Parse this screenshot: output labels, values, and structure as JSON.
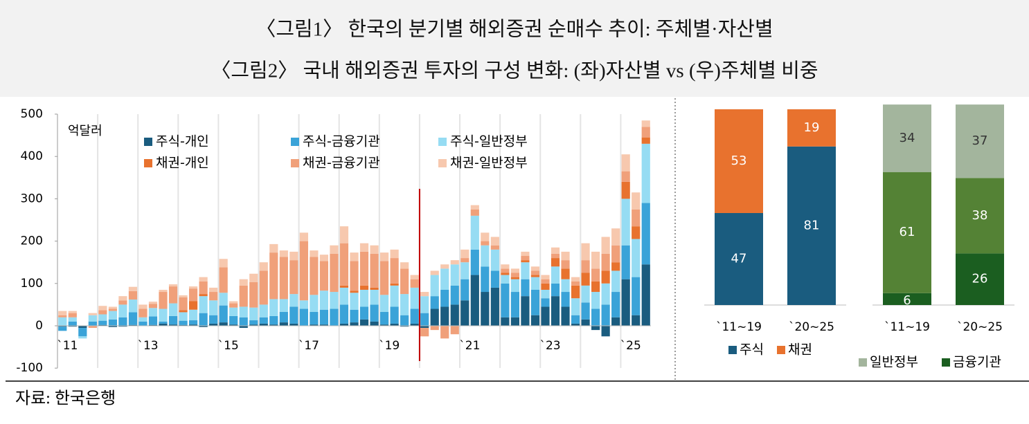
{
  "header": {
    "title1": "〈그림1〉 한국의 분기별 해외증권 순매수 추이: 주체별·자산별",
    "title2": "〈그림2〉 국내 해외증권 투자의 구성 변화: (좌)자산별 vs (우)주체별 비중"
  },
  "source": "자료: 한국은행",
  "chart_data": [
    {
      "type": "bar",
      "stacked": true,
      "unit": "억달러",
      "categories": [
        "`11",
        null,
        null,
        null,
        null,
        null,
        null,
        null,
        "`13",
        null,
        null,
        null,
        null,
        null,
        null,
        null,
        "`15",
        null,
        null,
        null,
        null,
        null,
        null,
        null,
        "`17",
        null,
        null,
        null,
        null,
        null,
        null,
        null,
        "`19",
        null,
        null,
        null,
        null,
        null,
        null,
        null,
        "`21",
        null,
        null,
        null,
        null,
        null,
        null,
        null,
        "`23",
        null,
        null,
        null,
        null,
        null,
        null,
        null,
        "`25",
        null,
        null
      ],
      "ylim": [
        -100,
        500
      ],
      "yticks": [
        -100,
        0,
        100,
        200,
        300,
        400,
        500
      ],
      "series": [
        {
          "name": "주식-개인",
          "color": "#1a5c7f",
          "values": [
            -2,
            -2,
            -5,
            0,
            2,
            -3,
            -2,
            2,
            0,
            2,
            5,
            3,
            2,
            3,
            -3,
            5,
            8,
            3,
            -5,
            3,
            5,
            3,
            8,
            5,
            0,
            3,
            3,
            0,
            5,
            8,
            15,
            10,
            3,
            5,
            -2,
            5,
            -5,
            40,
            45,
            50,
            60,
            120,
            80,
            90,
            20,
            20,
            70,
            25,
            45,
            70,
            45,
            5,
            15,
            -10,
            -25,
            20,
            110,
            25,
            145
          ]
        },
        {
          "name": "주식-금융기관",
          "color": "#3aa3d8",
          "values": [
            -10,
            10,
            -20,
            10,
            10,
            15,
            20,
            30,
            10,
            20,
            5,
            20,
            10,
            10,
            30,
            20,
            40,
            20,
            20,
            10,
            15,
            20,
            25,
            40,
            40,
            30,
            35,
            40,
            45,
            30,
            30,
            40,
            30,
            40,
            25,
            35,
            30,
            30,
            40,
            45,
            50,
            60,
            60,
            40,
            80,
            60,
            40,
            60,
            20,
            30,
            35,
            20,
            40,
            40,
            50,
            60,
            80,
            90,
            145
          ]
        },
        {
          "name": "주식-일반정부",
          "color": "#96dcf3",
          "values": [
            20,
            10,
            -5,
            15,
            15,
            20,
            30,
            30,
            10,
            20,
            30,
            30,
            20,
            25,
            40,
            35,
            30,
            20,
            25,
            30,
            30,
            40,
            30,
            30,
            20,
            40,
            45,
            40,
            40,
            40,
            40,
            35,
            40,
            50,
            50,
            50,
            40,
            50,
            50,
            50,
            40,
            80,
            50,
            50,
            20,
            30,
            40,
            30,
            20,
            40,
            30,
            40,
            40,
            40,
            50,
            50,
            110,
            90,
            140
          ]
        },
        {
          "name": "채권-개인",
          "color": "#e8722e",
          "values": [
            0,
            0,
            0,
            0,
            0,
            0,
            0,
            0,
            0,
            0,
            0,
            0,
            5,
            20,
            5,
            0,
            0,
            0,
            0,
            0,
            0,
            0,
            0,
            0,
            0,
            0,
            0,
            0,
            5,
            5,
            10,
            5,
            0,
            5,
            0,
            0,
            0,
            0,
            0,
            0,
            0,
            0,
            0,
            0,
            5,
            5,
            5,
            5,
            15,
            20,
            25,
            30,
            30,
            25,
            30,
            20,
            40,
            30,
            15
          ]
        },
        {
          "name": "채권-금융기관",
          "color": "#f0a07a",
          "values": [
            5,
            10,
            0,
            -5,
            10,
            5,
            10,
            20,
            20,
            10,
            40,
            40,
            30,
            30,
            30,
            20,
            60,
            10,
            50,
            60,
            80,
            110,
            100,
            80,
            140,
            90,
            70,
            90,
            100,
            70,
            80,
            80,
            80,
            60,
            60,
            20,
            -20,
            -10,
            -30,
            -20,
            10,
            15,
            10,
            10,
            10,
            10,
            10,
            10,
            10,
            10,
            20,
            10,
            30,
            30,
            40,
            40,
            25,
            40,
            25
          ]
        },
        {
          "name": "채권-일반정부",
          "color": "#f7c8ae",
          "values": [
            10,
            5,
            0,
            5,
            10,
            5,
            10,
            10,
            10,
            5,
            5,
            5,
            5,
            5,
            10,
            10,
            20,
            5,
            15,
            20,
            20,
            20,
            15,
            20,
            20,
            15,
            15,
            20,
            40,
            20,
            20,
            20,
            20,
            20,
            15,
            10,
            10,
            10,
            10,
            10,
            20,
            10,
            20,
            20,
            10,
            10,
            10,
            10,
            10,
            15,
            20,
            10,
            40,
            40,
            40,
            40,
            40,
            40,
            15
          ]
        }
      ]
    },
    {
      "type": "bar",
      "stacked": true,
      "categories": [
        "`11~19",
        "`20~25"
      ],
      "ylim": [
        0,
        100
      ],
      "series": [
        {
          "name": "주식",
          "color": "#1a5c7f",
          "label_color": "#ffffff",
          "values": [
            47,
            81
          ]
        },
        {
          "name": "채권",
          "color": "#e8722e",
          "label_color": "#ffffff",
          "values": [
            53,
            19
          ]
        }
      ]
    },
    {
      "type": "bar",
      "stacked": true,
      "categories": [
        "`11~19",
        "`20~25"
      ],
      "ylim": [
        0,
        100
      ],
      "series": [
        {
          "name": "금융기관",
          "color": "#1b5e20",
          "label_color": "#ffffff",
          "values": [
            6,
            26
          ]
        },
        {
          "color": "#548235",
          "label_color": "#ffffff",
          "values": [
            61,
            38
          ]
        },
        {
          "name": "일반정부",
          "color": "#a3b59d",
          "label_color": "#333333",
          "values": [
            34,
            37
          ]
        }
      ]
    }
  ]
}
